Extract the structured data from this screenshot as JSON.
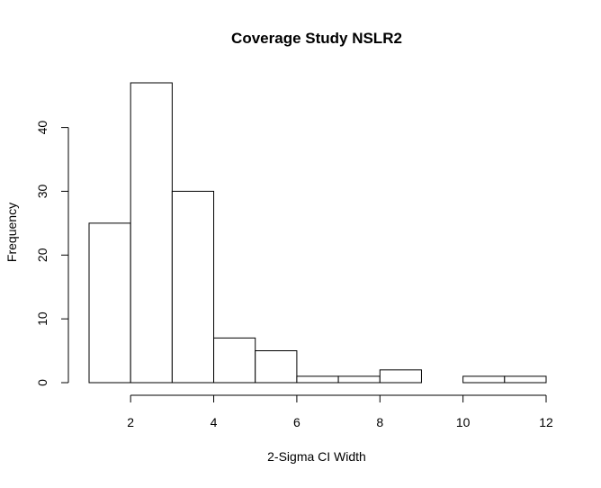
{
  "chart_data": {
    "type": "histogram",
    "title": "Coverage Study NSLR2",
    "xlabel": "2-Sigma CI Width",
    "ylabel": "Frequency",
    "bins": [
      {
        "start": 1,
        "end": 2,
        "count": 25
      },
      {
        "start": 2,
        "end": 3,
        "count": 47
      },
      {
        "start": 3,
        "end": 4,
        "count": 30
      },
      {
        "start": 4,
        "end": 5,
        "count": 7
      },
      {
        "start": 5,
        "end": 6,
        "count": 5
      },
      {
        "start": 6,
        "end": 7,
        "count": 1
      },
      {
        "start": 7,
        "end": 8,
        "count": 1
      },
      {
        "start": 8,
        "end": 9,
        "count": 2
      },
      {
        "start": 9,
        "end": 10,
        "count": 0
      },
      {
        "start": 10,
        "end": 11,
        "count": 1
      },
      {
        "start": 11,
        "end": 12,
        "count": 1
      }
    ],
    "x_ticks": [
      2,
      4,
      6,
      8,
      10,
      12
    ],
    "y_ticks": [
      0,
      10,
      20,
      30,
      40
    ],
    "xlim": [
      1,
      12
    ],
    "ylim": [
      0,
      47
    ],
    "grid": false,
    "legend": "none",
    "colors": {
      "bar_fill": "#ffffff",
      "bar_stroke": "#000000"
    }
  }
}
